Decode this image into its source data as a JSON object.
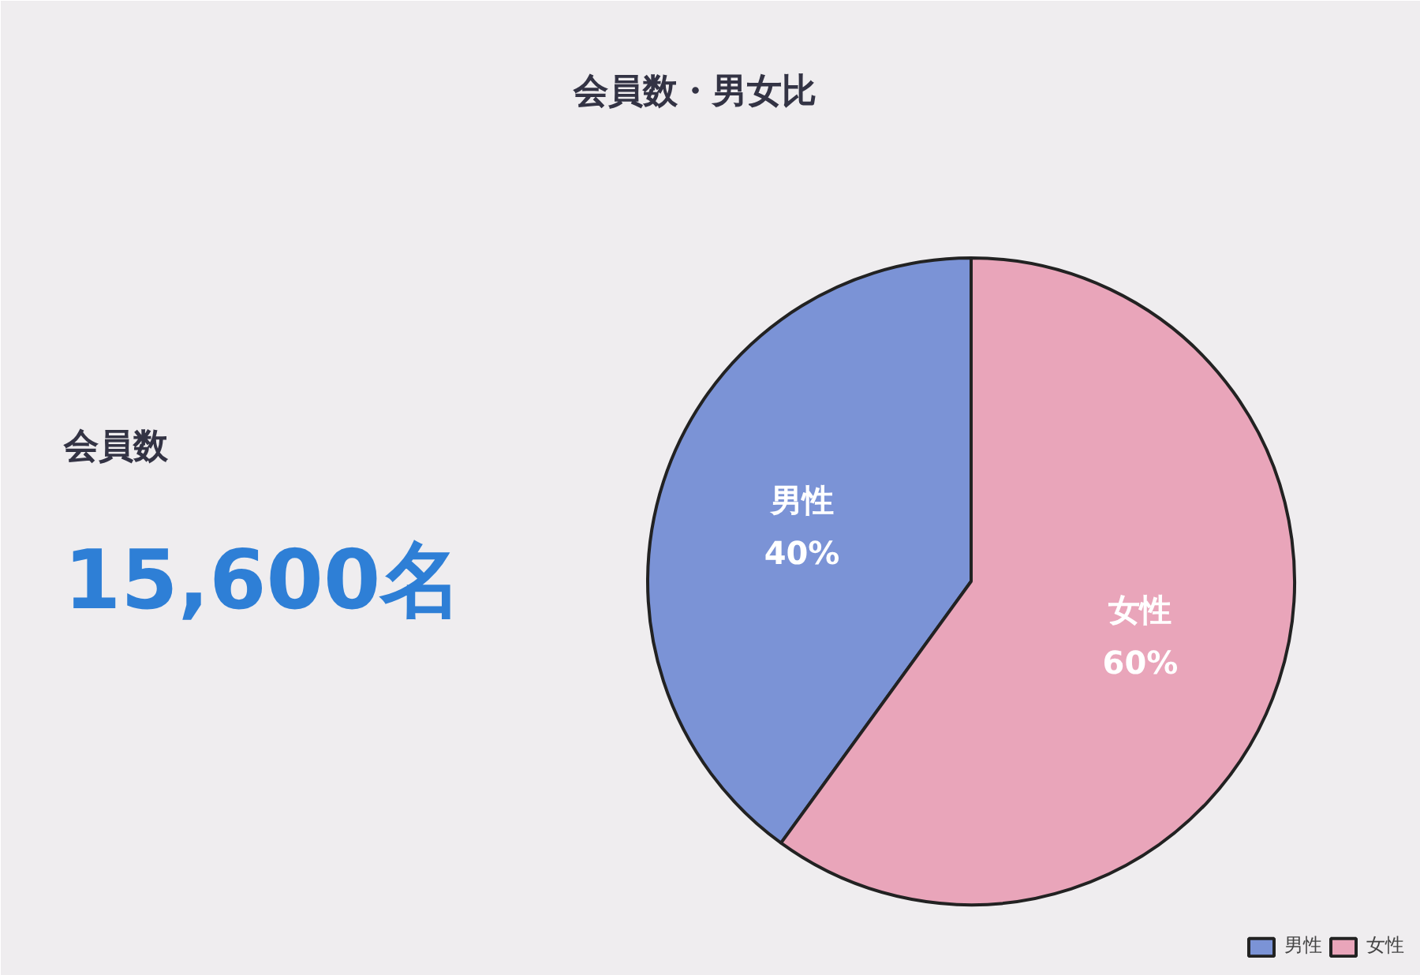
{
  "chart_data": {
    "type": "pie",
    "title": "会員数・男女比",
    "categories": [
      "男性",
      "女性"
    ],
    "values": [
      40,
      60
    ],
    "colors": [
      "#7b93d6",
      "#e9a5ba"
    ],
    "value_labels": [
      "40%",
      "60%"
    ],
    "legend": "bottom right",
    "annotations": [
      "会員数",
      "15,600名"
    ]
  }
}
